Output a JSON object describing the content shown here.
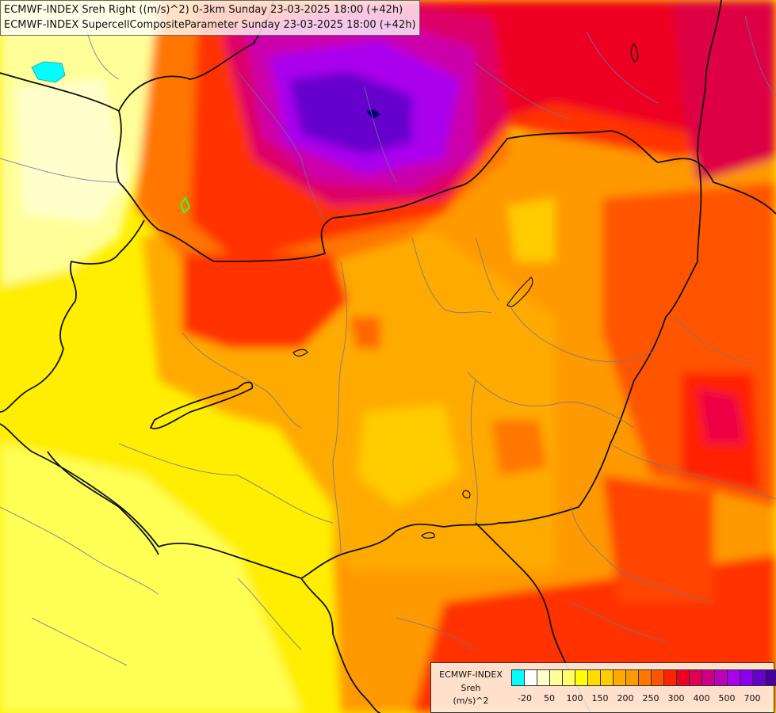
{
  "title": {
    "line1": "ECMWF-INDEX Sreh Right ((m/s)^2) 0-3km Sunday 23-03-2025 18:00 (+42h)",
    "line2": "ECMWF-INDEX SupercellCompositeParameter Sunday 23-03-2025 18:00 (+42h)"
  },
  "legend": {
    "title1": "ECMWF-INDEX",
    "title2": "Sreh",
    "title3": "(m/s)^2",
    "colors": [
      "#00ffff",
      "#ffffff",
      "#ffffcc",
      "#ffff99",
      "#ffff66",
      "#ffff00",
      "#ffdd00",
      "#ffcc00",
      "#ffaa00",
      "#ff9900",
      "#ff7700",
      "#ff5500",
      "#ff2200",
      "#ee0022",
      "#dd0055",
      "#cc0088",
      "#bb00bb",
      "#aa00ee",
      "#8800ee",
      "#6600cc",
      "#440099",
      "#000077"
    ],
    "ticks": [
      "-20",
      "50",
      "100",
      "150",
      "200",
      "250",
      "300",
      "400",
      "500",
      "700"
    ]
  }
}
